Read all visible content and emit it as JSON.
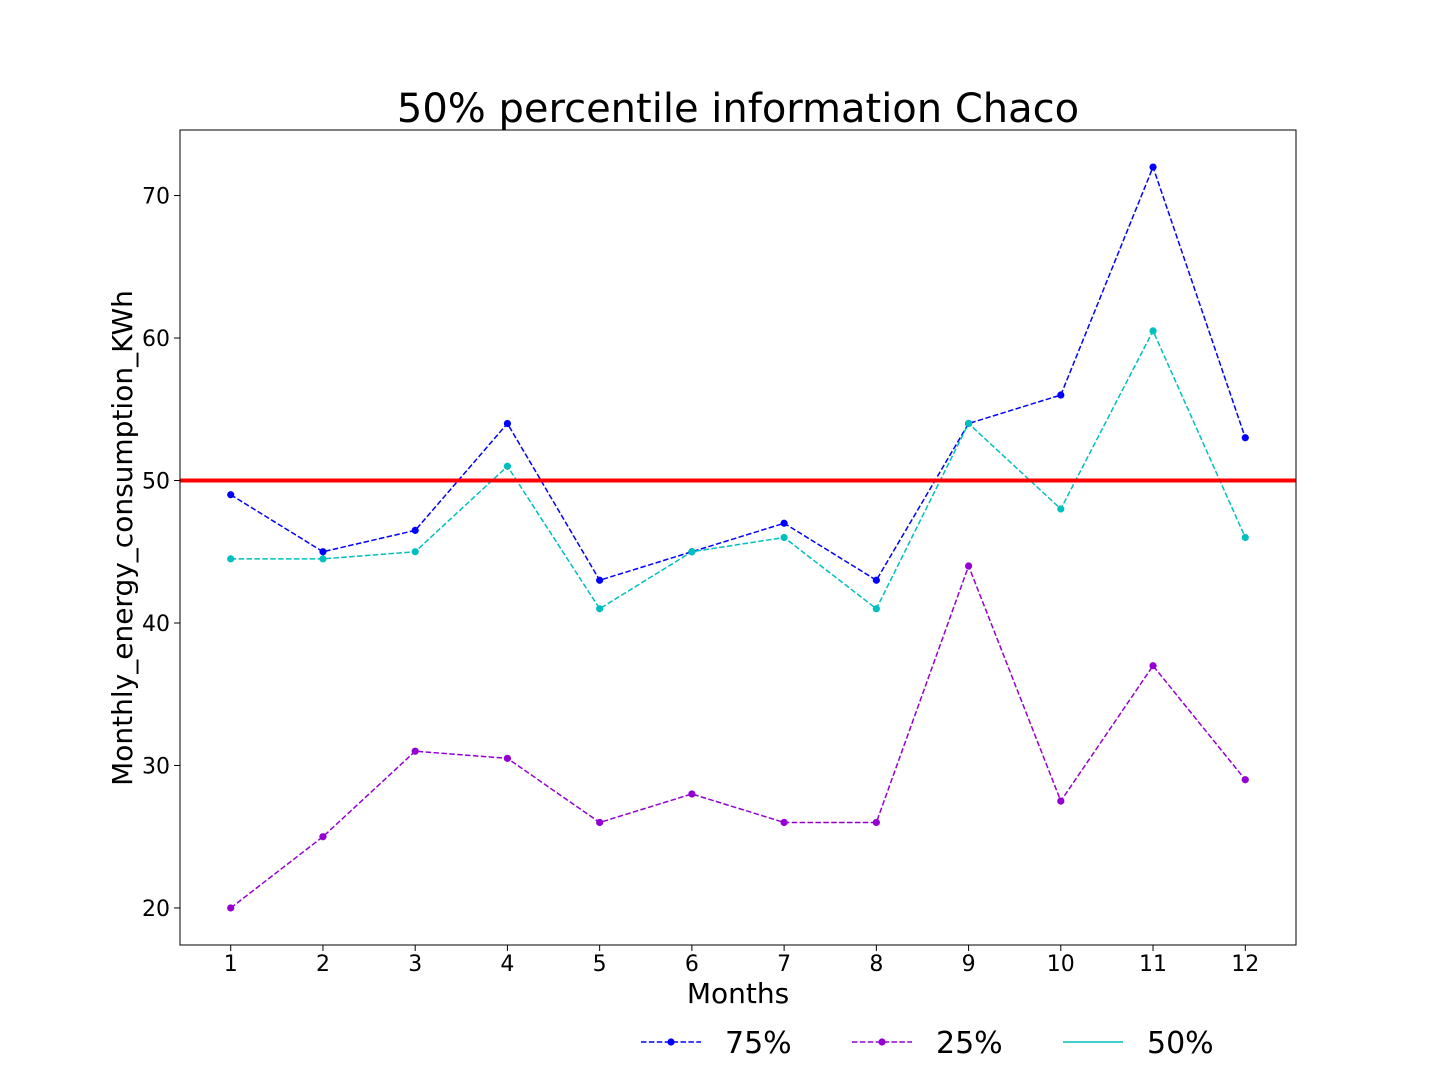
{
  "chart_data": {
    "type": "line",
    "title": "50% percentile information  Chaco",
    "xlabel": "Months",
    "ylabel": "Monthly_energy_consumption_KWh",
    "x": [
      1,
      2,
      3,
      4,
      5,
      6,
      7,
      8,
      9,
      10,
      11,
      12
    ],
    "x_tick_labels": [
      "1",
      "2",
      "3",
      "4",
      "5",
      "6",
      "7",
      "8",
      "9",
      "10",
      "11",
      "12"
    ],
    "xlim": [
      0.45,
      12.55
    ],
    "ylim": [
      17.4,
      74.6
    ],
    "y_ticks": [
      20,
      30,
      40,
      50,
      60,
      70
    ],
    "y_tick_labels": [
      "20",
      "30",
      "40",
      "50",
      "60",
      "70"
    ],
    "grid": false,
    "legend_position": "bottom-right, below plot",
    "series": [
      {
        "name": "75%",
        "color": "#0000ff",
        "line_style": "dashed",
        "marker": "circle",
        "values": [
          49,
          45,
          46.5,
          54,
          43,
          45,
          47,
          43,
          54,
          56,
          72,
          53
        ]
      },
      {
        "name": "25%",
        "color": "#9400d3",
        "line_style": "dashed",
        "marker": "circle",
        "values": [
          20,
          25,
          31,
          30.5,
          26,
          28,
          26,
          26,
          44,
          27.5,
          37,
          29
        ]
      },
      {
        "name": "50%",
        "color": "#00bfbf",
        "line_style": "dashed",
        "marker": "circle",
        "legend_style": "solid",
        "values": [
          44.5,
          44.5,
          45,
          51,
          41,
          45,
          46,
          41,
          54,
          48,
          60.5,
          46
        ]
      }
    ],
    "reference_lines": [
      {
        "type": "horizontal",
        "y": 50,
        "color": "#ff0000"
      }
    ]
  }
}
